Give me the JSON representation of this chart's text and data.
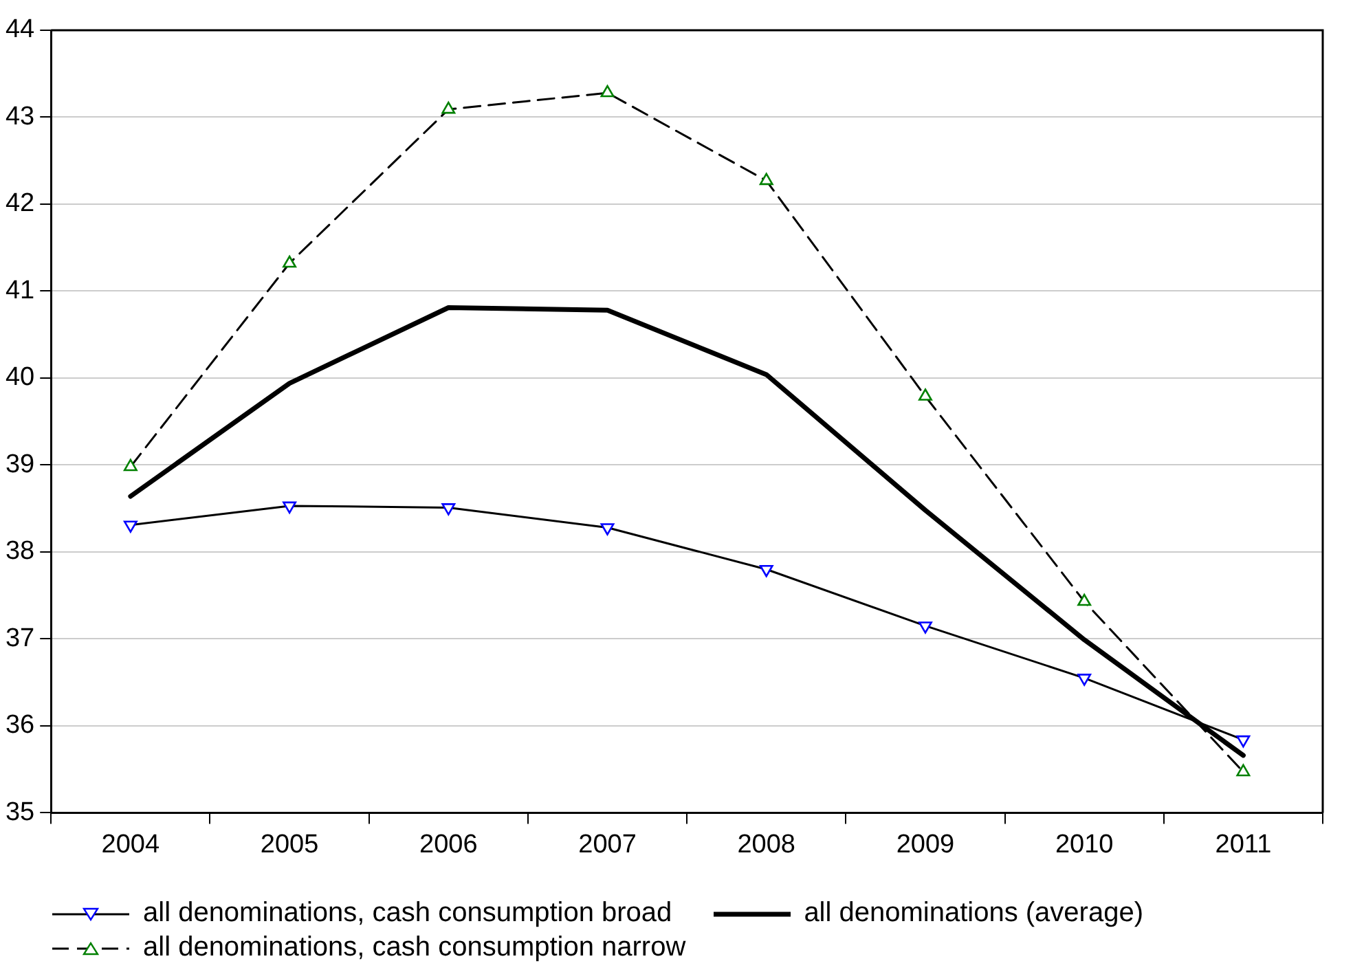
{
  "chart_data": {
    "type": "line",
    "categories": [
      "2004",
      "2005",
      "2006",
      "2007",
      "2008",
      "2009",
      "2010",
      "2011"
    ],
    "series": [
      {
        "name": "all denominations, cash consumption broad",
        "color": "#0000ff",
        "marker": "triangle-down",
        "line_style": "solid",
        "values": [
          38.31,
          38.53,
          38.51,
          38.28,
          37.8,
          37.15,
          36.55,
          35.84
        ]
      },
      {
        "name": "all denominations (average)",
        "color": "#000000",
        "marker": "none",
        "line_style": "solid",
        "values": [
          38.64,
          39.94,
          40.81,
          40.78,
          40.04,
          38.48,
          36.99,
          35.66
        ]
      },
      {
        "name": "all denominations, cash consumption narrow",
        "color": "#008000",
        "marker": "triangle",
        "line_style": "dashed",
        "values": [
          38.98,
          41.32,
          43.09,
          43.28,
          42.27,
          39.79,
          37.43,
          35.47
        ]
      }
    ],
    "ylim": [
      35,
      44
    ],
    "yticks": [
      35,
      36,
      37,
      38,
      39,
      40,
      41,
      42,
      43,
      44
    ],
    "grid": "y",
    "legend": "bottom"
  }
}
